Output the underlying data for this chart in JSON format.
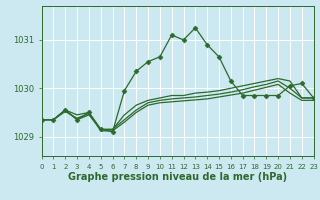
{
  "background_color": "#cce8f0",
  "grid_color": "#ffffff",
  "line_color": "#2d6a2d",
  "title": "Graphe pression niveau de la mer (hPa)",
  "title_fontsize": 7,
  "ylabel_ticks": [
    1029,
    1030,
    1031
  ],
  "ylabel_fontsize": 6,
  "xtick_fontsize": 5,
  "xlim": [
    0,
    23
  ],
  "ylim": [
    1028.6,
    1031.7
  ],
  "xtick_labels": [
    "0",
    "1",
    "2",
    "3",
    "4",
    "5",
    "6",
    "7",
    "8",
    "9",
    "10",
    "11",
    "12",
    "13",
    "14",
    "15",
    "16",
    "17",
    "18",
    "19",
    "20",
    "21",
    "22",
    "23"
  ],
  "series": [
    [
      1029.35,
      1029.35,
      1029.55,
      1029.35,
      1029.5,
      1029.15,
      1029.1,
      1029.95,
      1030.35,
      1030.55,
      1030.65,
      1031.1,
      1031.0,
      1031.25,
      1030.9,
      1030.65,
      1030.15,
      1029.85,
      1029.85,
      1029.85,
      1029.85,
      1030.05,
      1030.1,
      1029.8
    ],
    [
      1029.35,
      1029.35,
      1029.55,
      1029.35,
      1029.45,
      1029.15,
      1029.15,
      1029.45,
      1029.65,
      1029.75,
      1029.8,
      1029.85,
      1029.85,
      1029.9,
      1029.92,
      1029.95,
      1030.0,
      1030.05,
      1030.1,
      1030.15,
      1030.2,
      1030.15,
      1029.8,
      1029.8
    ],
    [
      1029.35,
      1029.35,
      1029.55,
      1029.45,
      1029.5,
      1029.15,
      1029.15,
      1029.35,
      1029.55,
      1029.7,
      1029.75,
      1029.78,
      1029.8,
      1029.82,
      1029.85,
      1029.88,
      1029.92,
      1029.97,
      1030.03,
      1030.08,
      1030.15,
      1030.0,
      1029.8,
      1029.8
    ],
    [
      1029.35,
      1029.35,
      1029.52,
      1029.38,
      1029.48,
      1029.12,
      1029.12,
      1029.3,
      1029.5,
      1029.65,
      1029.7,
      1029.72,
      1029.74,
      1029.76,
      1029.78,
      1029.82,
      1029.86,
      1029.9,
      1029.96,
      1030.02,
      1030.08,
      1029.9,
      1029.75,
      1029.75
    ]
  ],
  "marker": "D",
  "marker_size": 2.5
}
